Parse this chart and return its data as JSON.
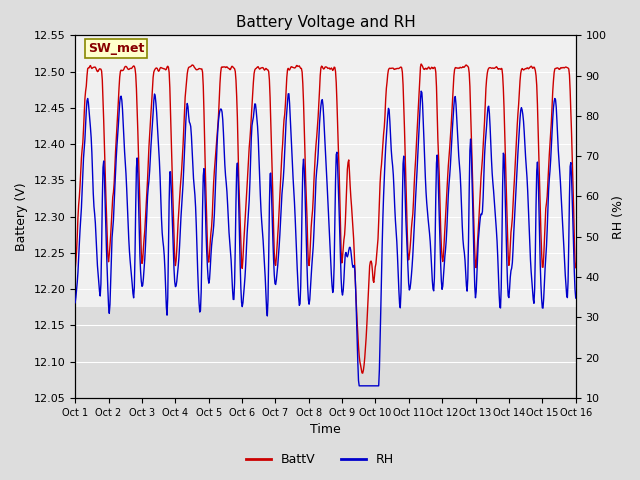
{
  "title": "Battery Voltage and RH",
  "xlabel": "Time",
  "ylabel_left": "Battery (V)",
  "ylabel_right": "RH (%)",
  "legend_label": "SW_met",
  "series_labels": [
    "BattV",
    "RH"
  ],
  "series_colors": [
    "#cc0000",
    "#0000cc"
  ],
  "ylim_left": [
    12.05,
    12.55
  ],
  "ylim_right": [
    10,
    100
  ],
  "yticks_left": [
    12.05,
    12.1,
    12.15,
    12.2,
    12.25,
    12.3,
    12.35,
    12.4,
    12.45,
    12.5,
    12.55
  ],
  "yticks_right": [
    10,
    20,
    30,
    40,
    50,
    60,
    70,
    80,
    90,
    100
  ],
  "xtick_labels": [
    "Oct 1",
    "Oct 2",
    "Oct 3",
    "Oct 4",
    "Oct 5",
    "Oct 6",
    "Oct 7",
    "Oct 8",
    "Oct 9",
    "Oct 10",
    "Oct 11",
    "Oct 12",
    "Oct 13",
    "Oct 14",
    "Oct 15",
    "Oct 16"
  ],
  "n_days": 15,
  "samples_per_day": 48,
  "background_color": "#dddddd",
  "plot_bg_color": "#f0f0f0",
  "inner_bg_color": "#dcdcdc",
  "grid_color": "#ffffff",
  "annotation_text": "SW_met",
  "annotation_fg": "#880000",
  "annotation_bg": "#ffffcc",
  "annotation_edge": "#888800",
  "line_width": 1.0,
  "title_fontsize": 11,
  "axis_fontsize": 9,
  "tick_fontsize": 8,
  "legend_fontsize": 9
}
